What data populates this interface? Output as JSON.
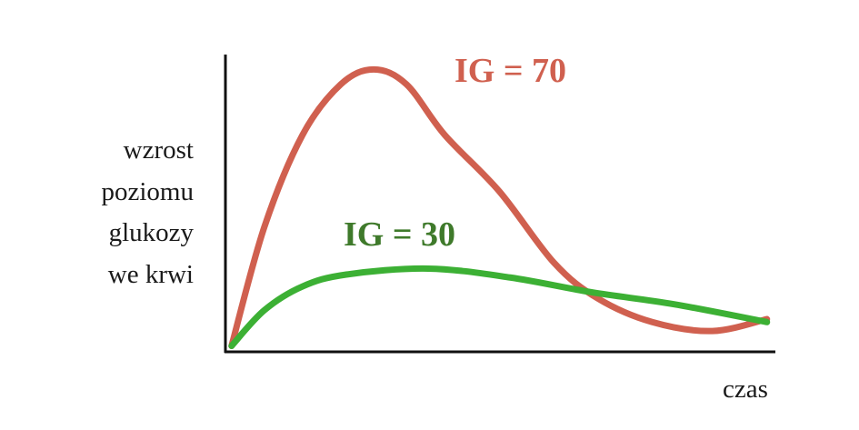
{
  "chart_data": {
    "type": "line",
    "title": "",
    "xlabel": "czas",
    "ylabel_lines": [
      "wzrost",
      "poziomu",
      "glukozy",
      "we krwi"
    ],
    "xlim": [
      0,
      100
    ],
    "ylim": [
      0,
      100
    ],
    "grid": false,
    "ticks": false,
    "series": [
      {
        "name": "IG = 70",
        "color": "#d0604f",
        "x": [
          1,
          7,
          14,
          21,
          27,
          33,
          40,
          50,
          60,
          68,
          78,
          89,
          99
        ],
        "y": [
          2,
          42,
          73,
          90,
          95,
          90,
          73,
          54,
          30,
          18,
          10,
          7,
          11
        ]
      },
      {
        "name": "IG = 30",
        "color": "#3cb034",
        "label_color": "#3f7a2b",
        "x": [
          1,
          7,
          14,
          22,
          37,
          52,
          67,
          82,
          99
        ],
        "y": [
          2,
          14,
          22,
          26,
          28,
          25,
          20,
          16,
          10
        ]
      }
    ]
  }
}
